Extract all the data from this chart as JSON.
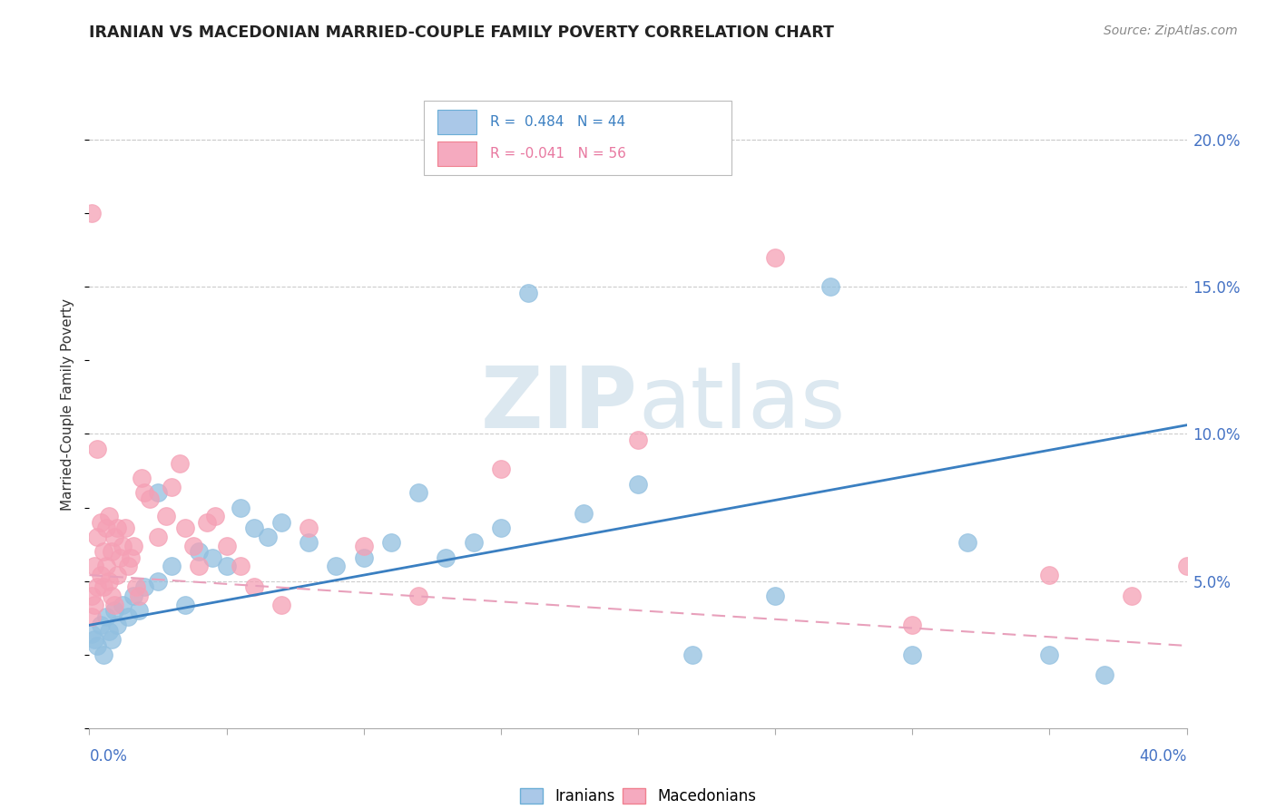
{
  "title": "IRANIAN VS MACEDONIAN MARRIED-COUPLE FAMILY POVERTY CORRELATION CHART",
  "source": "Source: ZipAtlas.com",
  "ylabel": "Married-Couple Family Poverty",
  "right_yticks": [
    "5.0%",
    "10.0%",
    "15.0%",
    "20.0%"
  ],
  "right_ytick_vals": [
    0.05,
    0.1,
    0.15,
    0.2
  ],
  "legend_r1": "R =  0.484   N = 44",
  "legend_r2": "R = -0.041   N = 56",
  "iranian_color": "#92c0e0",
  "macedonian_color": "#f5a0b5",
  "trendline_iranian_color": "#3a7fc1",
  "trendline_macedonian_color": "#e8a0bb",
  "watermark_color": "#dce8f0",
  "background_color": "#ffffff",
  "xlim": [
    0.0,
    0.4
  ],
  "ylim": [
    0.0,
    0.22
  ],
  "iran_trendline": [
    [
      0.0,
      0.035
    ],
    [
      0.4,
      0.103
    ]
  ],
  "mace_trendline": [
    [
      0.0,
      0.052
    ],
    [
      0.4,
      0.028
    ]
  ],
  "iranians_x": [
    0.001,
    0.002,
    0.003,
    0.004,
    0.005,
    0.006,
    0.007,
    0.008,
    0.009,
    0.01,
    0.012,
    0.014,
    0.016,
    0.018,
    0.02,
    0.025,
    0.03,
    0.035,
    0.04,
    0.05,
    0.055,
    0.06,
    0.065,
    0.07,
    0.08,
    0.09,
    0.1,
    0.11,
    0.12,
    0.13,
    0.14,
    0.15,
    0.16,
    0.18,
    0.2,
    0.22,
    0.25,
    0.27,
    0.3,
    0.32,
    0.35,
    0.37,
    0.025,
    0.045
  ],
  "iranians_y": [
    0.032,
    0.03,
    0.028,
    0.035,
    0.025,
    0.038,
    0.033,
    0.03,
    0.04,
    0.035,
    0.042,
    0.038,
    0.045,
    0.04,
    0.048,
    0.05,
    0.055,
    0.042,
    0.06,
    0.055,
    0.075,
    0.068,
    0.065,
    0.07,
    0.063,
    0.055,
    0.058,
    0.063,
    0.08,
    0.058,
    0.063,
    0.068,
    0.148,
    0.073,
    0.083,
    0.025,
    0.045,
    0.15,
    0.025,
    0.063,
    0.025,
    0.018,
    0.08,
    0.058
  ],
  "macedonians_x": [
    0.001,
    0.001,
    0.002,
    0.002,
    0.003,
    0.003,
    0.004,
    0.004,
    0.005,
    0.005,
    0.006,
    0.006,
    0.007,
    0.007,
    0.008,
    0.008,
    0.009,
    0.009,
    0.01,
    0.01,
    0.011,
    0.012,
    0.013,
    0.014,
    0.015,
    0.016,
    0.017,
    0.018,
    0.019,
    0.02,
    0.022,
    0.025,
    0.028,
    0.03,
    0.033,
    0.035,
    0.038,
    0.04,
    0.043,
    0.046,
    0.05,
    0.055,
    0.06,
    0.07,
    0.08,
    0.1,
    0.12,
    0.15,
    0.2,
    0.25,
    0.3,
    0.35,
    0.38,
    0.4,
    0.001,
    0.003
  ],
  "macedonians_y": [
    0.045,
    0.038,
    0.042,
    0.055,
    0.048,
    0.065,
    0.052,
    0.07,
    0.048,
    0.06,
    0.055,
    0.068,
    0.05,
    0.072,
    0.045,
    0.06,
    0.042,
    0.065,
    0.052,
    0.068,
    0.058,
    0.062,
    0.068,
    0.055,
    0.058,
    0.062,
    0.048,
    0.045,
    0.085,
    0.08,
    0.078,
    0.065,
    0.072,
    0.082,
    0.09,
    0.068,
    0.062,
    0.055,
    0.07,
    0.072,
    0.062,
    0.055,
    0.048,
    0.042,
    0.068,
    0.062,
    0.045,
    0.088,
    0.098,
    0.16,
    0.035,
    0.052,
    0.045,
    0.055,
    0.175,
    0.095
  ]
}
